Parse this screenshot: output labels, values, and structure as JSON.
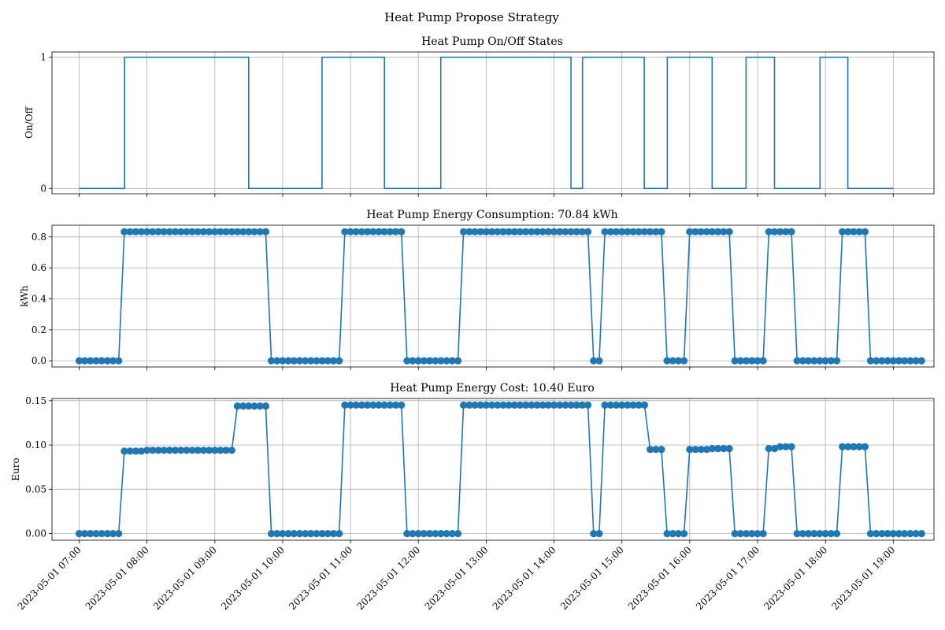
{
  "suptitle": "Heat Pump Propose Strategy",
  "x_tick_labels": [
    "2023-05-01 07:00",
    "2023-05-01 08:00",
    "2023-05-01 09:00",
    "2023-05-01 10:00",
    "2023-05-01 11:00",
    "2023-05-01 12:00",
    "2023-05-01 13:00",
    "2023-05-01 14:00",
    "2023-05-01 15:00",
    "2023-05-01 16:00",
    "2023-05-01 17:00",
    "2023-05-01 18:00",
    "2023-05-01 19:00"
  ],
  "chart_data": [
    {
      "type": "line",
      "drawstyle": "steps",
      "title": "Heat Pump On/Off States",
      "ylabel": "On/Off",
      "xlabel": "",
      "xlim_hours": [
        6.6,
        19.6
      ],
      "ylim": [
        -0.04,
        1.04
      ],
      "yticks": [
        0,
        1
      ],
      "ytick_labels": [
        "0",
        "1"
      ],
      "grid": true,
      "markers": false,
      "segments": [
        {
          "start_hour": 7.0,
          "value": 0
        },
        {
          "start_hour": 7.67,
          "value": 1
        },
        {
          "start_hour": 9.5,
          "value": 0
        },
        {
          "start_hour": 10.58,
          "value": 1
        },
        {
          "start_hour": 11.5,
          "value": 0
        },
        {
          "start_hour": 12.33,
          "value": 1
        },
        {
          "start_hour": 14.25,
          "value": 0
        },
        {
          "start_hour": 14.42,
          "value": 1
        },
        {
          "start_hour": 15.33,
          "value": 0
        },
        {
          "start_hour": 15.67,
          "value": 1
        },
        {
          "start_hour": 16.33,
          "value": 0
        },
        {
          "start_hour": 16.83,
          "value": 1
        },
        {
          "start_hour": 17.25,
          "value": 0
        },
        {
          "start_hour": 17.92,
          "value": 1
        },
        {
          "start_hour": 18.33,
          "value": 0
        }
      ],
      "end_hour": 19.0
    },
    {
      "type": "line",
      "title": "Heat Pump Energy Consumption: 70.84 kWh",
      "ylabel": "kWh",
      "xlabel": "",
      "xlim_hours": [
        6.6,
        19.6
      ],
      "ylim": [
        -0.04,
        0.875
      ],
      "yticks": [
        0,
        0.2,
        0.4,
        0.6,
        0.8
      ],
      "ytick_labels": [
        "0.0",
        "0.2",
        "0.4",
        "0.6",
        "0.8"
      ],
      "grid": true,
      "markers": true,
      "points_start_hour": 7.0,
      "points_step_hours": 0.08333,
      "values": [
        0,
        0,
        0,
        0,
        0,
        0,
        0,
        0,
        0.833,
        0.833,
        0.833,
        0.833,
        0.833,
        0.833,
        0.833,
        0.833,
        0.833,
        0.833,
        0.833,
        0.833,
        0.833,
        0.833,
        0.833,
        0.833,
        0.833,
        0.833,
        0.833,
        0.833,
        0.833,
        0.833,
        0.833,
        0.833,
        0.833,
        0.833,
        0,
        0,
        0,
        0,
        0,
        0,
        0,
        0,
        0,
        0,
        0,
        0,
        0,
        0.833,
        0.833,
        0.833,
        0.833,
        0.833,
        0.833,
        0.833,
        0.833,
        0.833,
        0.833,
        0.833,
        0,
        0,
        0,
        0,
        0,
        0,
        0,
        0,
        0,
        0,
        0.833,
        0.833,
        0.833,
        0.833,
        0.833,
        0.833,
        0.833,
        0.833,
        0.833,
        0.833,
        0.833,
        0.833,
        0.833,
        0.833,
        0.833,
        0.833,
        0.833,
        0.833,
        0.833,
        0.833,
        0.833,
        0.833,
        0.833,
        0,
        0,
        0.833,
        0.833,
        0.833,
        0.833,
        0.833,
        0.833,
        0.833,
        0.833,
        0.833,
        0.833,
        0.833,
        0,
        0,
        0,
        0,
        0.833,
        0.833,
        0.833,
        0.833,
        0.833,
        0.833,
        0.833,
        0.833,
        0,
        0,
        0,
        0,
        0,
        0,
        0.833,
        0.833,
        0.833,
        0.833,
        0.833,
        0,
        0,
        0,
        0,
        0,
        0,
        0,
        0,
        0.833,
        0.833,
        0.833,
        0.833,
        0.833,
        0,
        0,
        0,
        0,
        0,
        0,
        0,
        0,
        0,
        0
      ]
    },
    {
      "type": "line",
      "title": "Heat Pump Energy Cost: 10.40 Euro",
      "ylabel": "Euro",
      "xlabel": "",
      "xlim_hours": [
        6.6,
        19.6
      ],
      "ylim": [
        -0.0075,
        0.1525
      ],
      "yticks": [
        0,
        0.05,
        0.1,
        0.15
      ],
      "ytick_labels": [
        "0.00",
        "0.05",
        "0.10",
        "0.15"
      ],
      "grid": true,
      "markers": true,
      "points_start_hour": 7.0,
      "points_step_hours": 0.08333,
      "values": [
        0,
        0,
        0,
        0,
        0,
        0,
        0,
        0,
        0.093,
        0.093,
        0.093,
        0.093,
        0.094,
        0.094,
        0.094,
        0.094,
        0.094,
        0.094,
        0.094,
        0.094,
        0.094,
        0.094,
        0.094,
        0.094,
        0.094,
        0.094,
        0.094,
        0.094,
        0.144,
        0.144,
        0.144,
        0.144,
        0.144,
        0.144,
        0,
        0,
        0,
        0,
        0,
        0,
        0,
        0,
        0,
        0,
        0,
        0,
        0,
        0.145,
        0.145,
        0.145,
        0.145,
        0.145,
        0.145,
        0.145,
        0.145,
        0.145,
        0.145,
        0.145,
        0,
        0,
        0,
        0,
        0,
        0,
        0,
        0,
        0,
        0,
        0.145,
        0.145,
        0.145,
        0.145,
        0.145,
        0.145,
        0.145,
        0.145,
        0.145,
        0.145,
        0.145,
        0.145,
        0.145,
        0.145,
        0.145,
        0.145,
        0.145,
        0.145,
        0.145,
        0.145,
        0.145,
        0.145,
        0.145,
        0,
        0,
        0.145,
        0.145,
        0.145,
        0.145,
        0.145,
        0.145,
        0.145,
        0.145,
        0.095,
        0.095,
        0.095,
        0,
        0,
        0,
        0,
        0.095,
        0.095,
        0.095,
        0.095,
        0.096,
        0.096,
        0.096,
        0.096,
        0,
        0,
        0,
        0,
        0,
        0,
        0.096,
        0.096,
        0.098,
        0.098,
        0.098,
        0,
        0,
        0,
        0,
        0,
        0,
        0,
        0,
        0.098,
        0.098,
        0.098,
        0.098,
        0.098,
        0,
        0,
        0,
        0,
        0,
        0,
        0,
        0,
        0,
        0
      ]
    }
  ]
}
